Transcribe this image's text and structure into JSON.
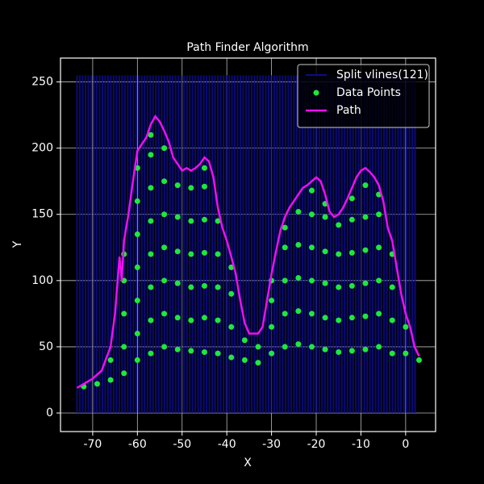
{
  "chart_data": {
    "type": "scatter",
    "title": "Path Finder Algorithm",
    "x_label": "X",
    "y_label": "Y",
    "xlim": [
      -77.2,
      6.7
    ],
    "ylim": [
      -14,
      268
    ],
    "xticks": [
      -70,
      -60,
      -50,
      -40,
      -30,
      -20,
      -10,
      0
    ],
    "yticks": [
      0,
      50,
      100,
      150,
      200,
      250
    ],
    "grid": true,
    "legend": "upper right",
    "series": [
      {
        "name": "Split vlines(121)",
        "kind": "vlines",
        "color": "#0c0c8c",
        "ymin": 0,
        "ymax": 255,
        "x": [
          -73.5,
          -72.87,
          -72.24,
          -71.61,
          -70.98,
          -70.35,
          -69.72,
          -69.09,
          -68.46,
          -67.83,
          -67.2,
          -66.57,
          -65.94,
          -65.31,
          -64.68,
          -64.05,
          -63.42,
          -62.79,
          -62.16,
          -61.53,
          -60.9,
          -60.27,
          -59.64,
          -59.01,
          -58.38,
          -57.75,
          -57.12,
          -56.49,
          -55.86,
          -55.23,
          -54.6,
          -53.97,
          -53.34,
          -52.71,
          -52.08,
          -51.45,
          -50.82,
          -50.19,
          -49.56,
          -48.93,
          -48.3,
          -47.67,
          -47.04,
          -46.41,
          -45.78,
          -45.15,
          -44.52,
          -43.89,
          -43.26,
          -42.63,
          -42,
          -41.37,
          -40.74,
          -40.11,
          -39.48,
          -38.85,
          -38.22,
          -37.59,
          -36.96,
          -36.33,
          -35.7,
          -35.07,
          -34.44,
          -33.81,
          -33.18,
          -32.55,
          -31.92,
          -31.29,
          -30.66,
          -30.03,
          -29.4,
          -28.77,
          -28.14,
          -27.51,
          -26.88,
          -26.25,
          -25.62,
          -24.99,
          -24.36,
          -23.73,
          -23.1,
          -22.47,
          -21.84,
          -21.21,
          -20.58,
          -19.95,
          -19.32,
          -18.69,
          -18.06,
          -17.43,
          -16.8,
          -16.17,
          -15.54,
          -14.91,
          -14.28,
          -13.65,
          -13.02,
          -12.39,
          -11.76,
          -11.13,
          -10.5,
          -9.87,
          -9.24,
          -8.61,
          -7.98,
          -7.35,
          -6.72,
          -6.09,
          -5.46,
          -4.83,
          -4.2,
          -3.57,
          -2.94,
          -2.31,
          -1.68,
          -1.05,
          -0.42,
          0.21,
          0.84,
          1.47,
          2.1
        ]
      },
      {
        "name": "Data Points",
        "kind": "scatter",
        "color": "#1ee83c",
        "x": [
          -72,
          -69,
          -66,
          -66,
          -63,
          -63,
          -63,
          -63,
          -63,
          -60,
          -60,
          -60,
          -60,
          -60,
          -60,
          -60,
          -57,
          -57,
          -57,
          -57,
          -57,
          -57,
          -57,
          -57,
          -54,
          -54,
          -54,
          -54,
          -54,
          -54,
          -54,
          -51,
          -51,
          -51,
          -51,
          -51,
          -51,
          -48,
          -48,
          -48,
          -48,
          -48,
          -48,
          -45,
          -45,
          -45,
          -45,
          -45,
          -45,
          -45,
          -42,
          -42,
          -42,
          -42,
          -42,
          -39,
          -39,
          -39,
          -39,
          -36,
          -36,
          -33,
          -33,
          -30,
          -30,
          -30,
          -30,
          -27,
          -27,
          -27,
          -27,
          -27,
          -24,
          -24,
          -24,
          -24,
          -24,
          -21,
          -21,
          -21,
          -21,
          -21,
          -21,
          -18,
          -18,
          -18,
          -18,
          -18,
          -18,
          -15,
          -15,
          -15,
          -15,
          -15,
          -12,
          -12,
          -12,
          -12,
          -12,
          -12,
          -9,
          -9,
          -9,
          -9,
          -9,
          -9,
          -6,
          -6,
          -6,
          -6,
          -6,
          -6,
          -3,
          -3,
          -3,
          -3,
          0,
          0,
          3
        ],
        "values": [
          20,
          22,
          25,
          40,
          30,
          50,
          75,
          100,
          120,
          40,
          60,
          85,
          110,
          135,
          160,
          185,
          45,
          70,
          95,
          120,
          145,
          170,
          195,
          210,
          50,
          75,
          100,
          125,
          150,
          175,
          200,
          48,
          72,
          98,
          122,
          148,
          172,
          47,
          70,
          95,
          120,
          145,
          170,
          46,
          72,
          96,
          121,
          146,
          171,
          185,
          45,
          70,
          95,
          120,
          145,
          42,
          65,
          90,
          110,
          40,
          55,
          38,
          50,
          45,
          65,
          85,
          100,
          50,
          75,
          100,
          125,
          140,
          52,
          77,
          102,
          127,
          152,
          50,
          75,
          100,
          125,
          150,
          168,
          48,
          72,
          98,
          122,
          148,
          158,
          46,
          70,
          95,
          120,
          142,
          47,
          72,
          96,
          121,
          146,
          162,
          48,
          73,
          98,
          123,
          148,
          172,
          50,
          75,
          100,
          125,
          150,
          165,
          45,
          70,
          95,
          120,
          45,
          65,
          40
        ]
      },
      {
        "name": "Path",
        "kind": "line",
        "color": "#ee10ee",
        "x": [
          -73.5,
          -72,
          -70,
          -68,
          -66,
          -65,
          -64,
          -63.5,
          -63,
          -62,
          -61,
          -60,
          -59,
          -58,
          -57,
          -56,
          -55,
          -54,
          -53,
          -52,
          -51,
          -50,
          -49,
          -48,
          -47,
          -46,
          -45,
          -44,
          -43,
          -42,
          -41,
          -40,
          -39,
          -38,
          -37,
          -36,
          -35,
          -34,
          -33,
          -32,
          -31,
          -30,
          -29,
          -28,
          -27,
          -26,
          -25,
          -24,
          -23,
          -22,
          -21,
          -20,
          -19,
          -18,
          -17,
          -16,
          -15,
          -14,
          -13,
          -12,
          -11,
          -10,
          -9,
          -8,
          -7,
          -6,
          -5,
          -4,
          -3,
          -2,
          -1,
          0,
          1,
          2,
          3
        ],
        "values": [
          19,
          22,
          26,
          32,
          50,
          75,
          118,
          100,
          130,
          150,
          175,
          198,
          203,
          208,
          218,
          224,
          220,
          213,
          205,
          193,
          188,
          183,
          185,
          183,
          185,
          188,
          193,
          190,
          178,
          155,
          140,
          130,
          118,
          105,
          85,
          68,
          60,
          60,
          60,
          65,
          85,
          105,
          122,
          138,
          148,
          155,
          160,
          165,
          170,
          172,
          175,
          178,
          175,
          165,
          152,
          148,
          150,
          155,
          162,
          170,
          178,
          183,
          185,
          182,
          178,
          172,
          160,
          140,
          130,
          110,
          90,
          75,
          65,
          50,
          43
        ]
      }
    ]
  }
}
